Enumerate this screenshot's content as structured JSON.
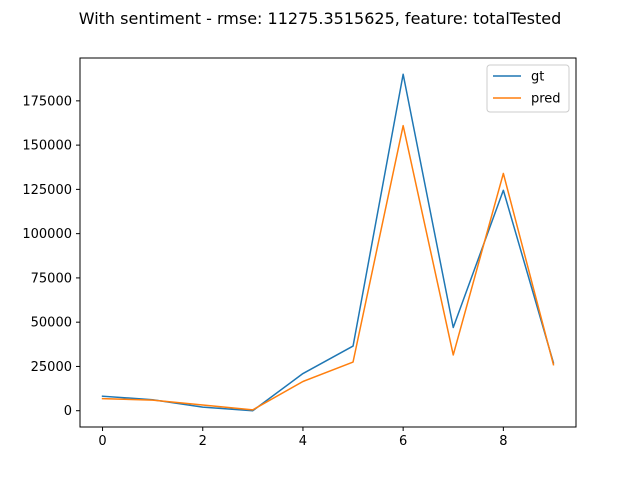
{
  "chart_data": {
    "type": "line",
    "title": "With sentiment - rmse: 11275.3515625, feature: totalTested",
    "xlabel": "",
    "ylabel": "",
    "x": [
      0,
      1,
      2,
      3,
      4,
      5,
      6,
      7,
      8,
      9
    ],
    "series": [
      {
        "name": "gt",
        "color": "#1f77b4",
        "values": [
          8200,
          6200,
          2000,
          0,
          21000,
          36500,
          190000,
          47000,
          124500,
          27000
        ]
      },
      {
        "name": "pred",
        "color": "#ff7f0e",
        "values": [
          6800,
          6000,
          3200,
          500,
          16500,
          27500,
          161000,
          31500,
          134000,
          26000
        ]
      }
    ],
    "xlim": [
      -0.45,
      9.45
    ],
    "ylim": [
      -9200,
      199200
    ],
    "xticks": [
      0,
      2,
      4,
      6,
      8
    ],
    "yticks": [
      0,
      25000,
      50000,
      75000,
      100000,
      125000,
      150000,
      175000
    ],
    "grid": false,
    "legend_position": "top-right"
  }
}
